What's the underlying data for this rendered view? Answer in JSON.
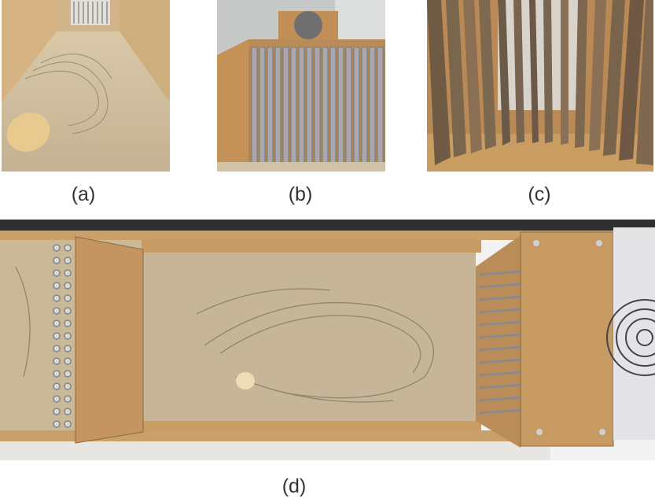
{
  "figure": {
    "captions": {
      "a": "(a)",
      "b": "(b)",
      "c": "(c)",
      "d": "(d)"
    }
  },
  "colors": {
    "sand": "#c9b797",
    "wood": "#c69a62",
    "wood_dark": "#9c7440",
    "metal": "#a9a9ad",
    "background": "#ffffff"
  },
  "icons": {
    "fan": "fan-icon",
    "tubes": "tube-array-icon",
    "fins": "fin-array-icon"
  }
}
